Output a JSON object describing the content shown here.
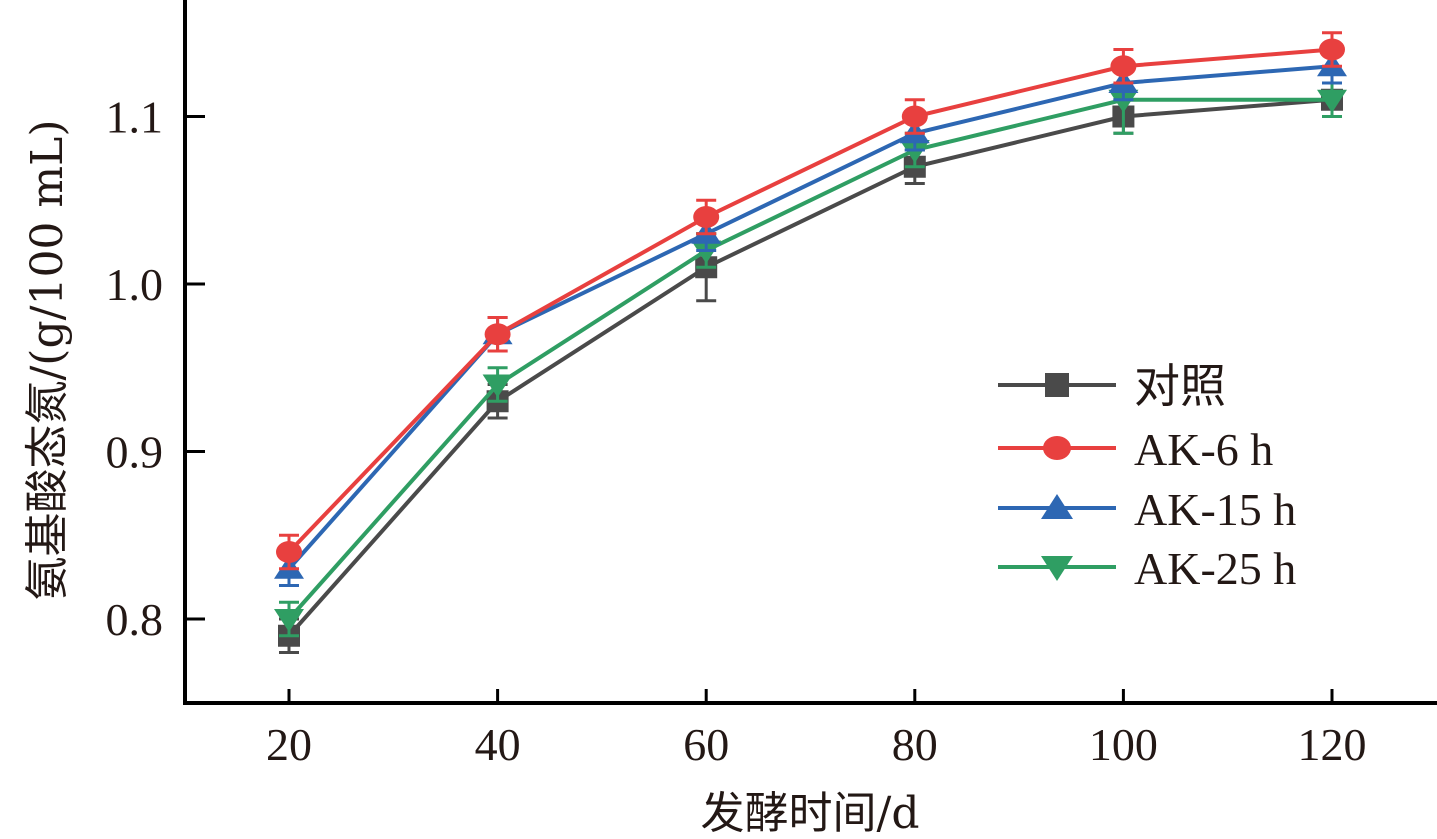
{
  "chart_data": {
    "type": "line",
    "title": "",
    "xlabel": "发酵时间/d",
    "ylabel": "氨基酸态氮/(g/100 mL)",
    "x": [
      20,
      40,
      60,
      80,
      100,
      120
    ],
    "xticks": [
      "20",
      "40",
      "60",
      "80",
      "100",
      "120"
    ],
    "yticks": [
      "0.8",
      "0.9",
      "1.0",
      "1.1"
    ],
    "ytick_values": [
      0.8,
      0.9,
      1.0,
      1.1
    ],
    "xlim": [
      10,
      129
    ],
    "ylim": [
      0.75,
      1.18
    ],
    "grid": false,
    "legend_position": "center-right",
    "series": [
      {
        "name": "对照",
        "color": "#4a4a4a",
        "marker": "square",
        "values": [
          0.79,
          0.93,
          1.01,
          1.07,
          1.1,
          1.11
        ],
        "errors": [
          0.01,
          0.01,
          0.02,
          0.01,
          0.01,
          0.01
        ]
      },
      {
        "name": "AK-6 h",
        "color": "#e8403f",
        "marker": "circle",
        "values": [
          0.84,
          0.97,
          1.04,
          1.1,
          1.13,
          1.14
        ],
        "errors": [
          0.01,
          0.01,
          0.01,
          0.01,
          0.01,
          0.01
        ]
      },
      {
        "name": "AK-15 h",
        "color": "#2d67b3",
        "marker": "triangle-up",
        "values": [
          0.83,
          0.97,
          1.03,
          1.09,
          1.12,
          1.13
        ],
        "errors": [
          0.01,
          0.01,
          0.01,
          0.01,
          0.01,
          0.01
        ]
      },
      {
        "name": "AK-25 h",
        "color": "#2f9e63",
        "marker": "triangle-down",
        "values": [
          0.8,
          0.94,
          1.02,
          1.08,
          1.11,
          1.11
        ],
        "errors": [
          0.01,
          0.01,
          0.01,
          0.01,
          0.02,
          0.01
        ]
      }
    ]
  }
}
